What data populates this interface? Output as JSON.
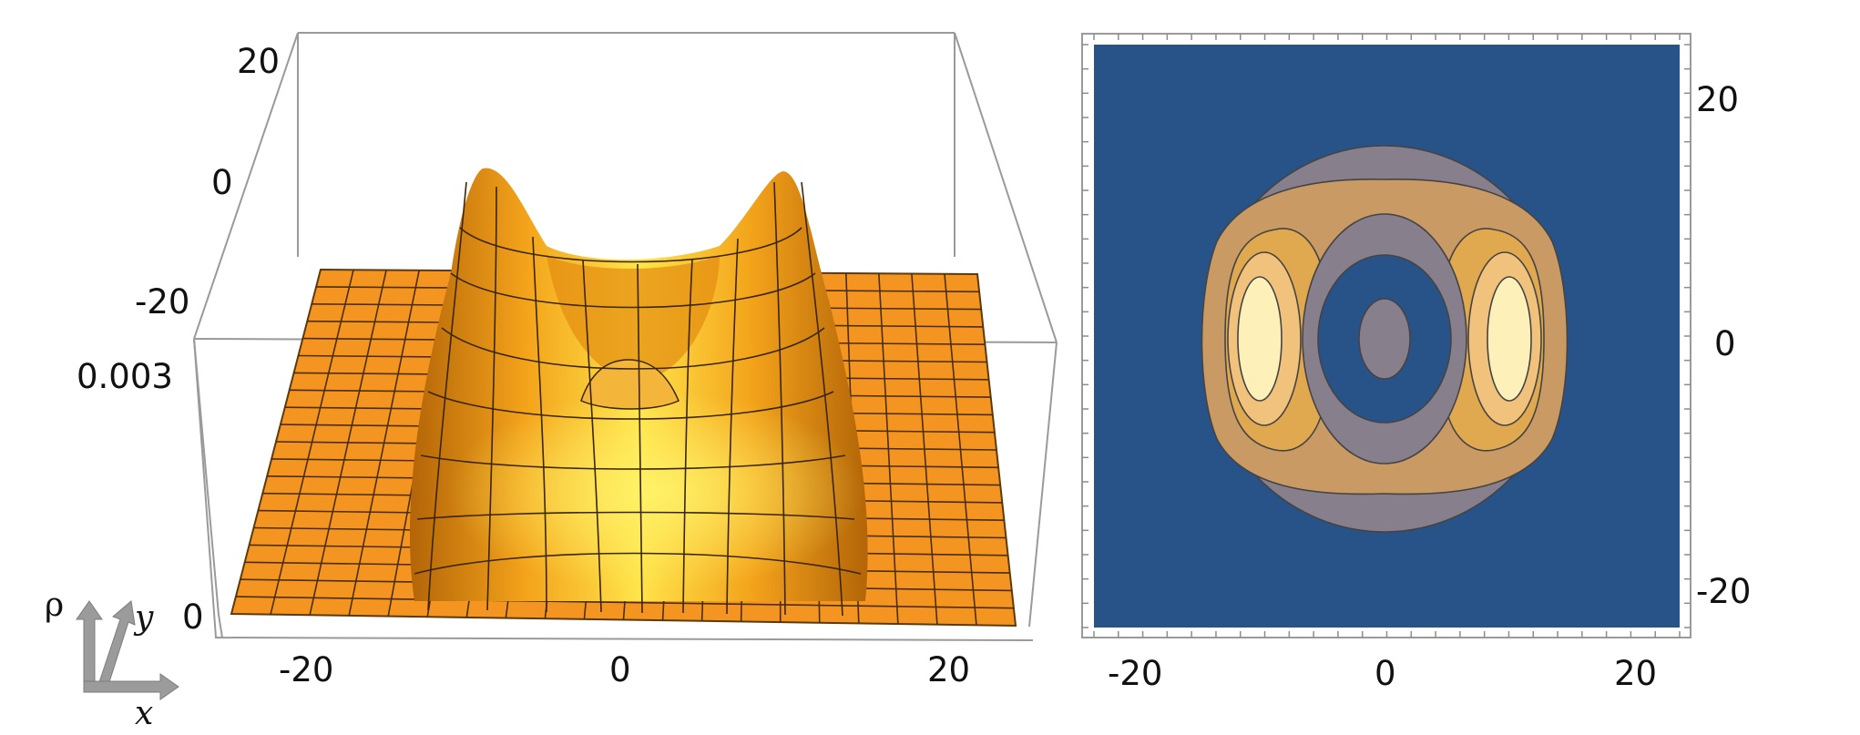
{
  "chart_data": [
    {
      "type": "surface",
      "zlabel_tick": "0.003",
      "x_ticks": [
        "-20",
        "0",
        "20"
      ],
      "y_ticks": [
        "-20",
        "0",
        "20"
      ],
      "z_ticks": [
        "0",
        "0.003"
      ],
      "xrange": [
        -25,
        25
      ],
      "yrange": [
        -25,
        25
      ],
      "zrange": [
        0,
        0.003
      ],
      "surface_color": "#f7a21b",
      "orientation_glyphs": {
        "rho": "ρ",
        "y": "y",
        "x": "x"
      },
      "features": [
        {
          "label": "ridge peak left",
          "x": -9,
          "y": 0,
          "z": 0.0034
        },
        {
          "label": "ridge peak right",
          "x": 9,
          "y": 0,
          "z": 0.0034
        },
        {
          "label": "central bump",
          "x": 0,
          "y": 0,
          "z": 0.0012
        }
      ]
    },
    {
      "type": "heatmap",
      "subtype": "contour",
      "x_ticks": [
        "-20",
        "0",
        "20"
      ],
      "y_ticks": [
        "-20",
        "0",
        "20"
      ],
      "xrange": [
        -25,
        25
      ],
      "yrange": [
        -25,
        25
      ],
      "levels_colors": [
        "#275389",
        "#877f8b",
        "#c99a63",
        "#e0a94f",
        "#f1c27c",
        "#fdf0b8"
      ],
      "background_color": "#275389"
    }
  ]
}
